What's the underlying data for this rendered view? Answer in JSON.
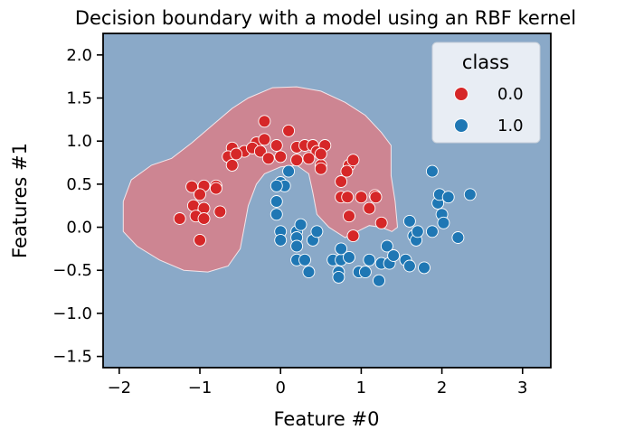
{
  "chart_data": {
    "type": "scatter",
    "title": "Decision boundary with a model using an RBF kernel",
    "xlabel": "Feature #0",
    "ylabel": "Features #1",
    "xlim": [
      -2.2,
      3.35
    ],
    "ylim": [
      -1.63,
      2.25
    ],
    "xticks": [
      -2,
      -1,
      0,
      1,
      2,
      3
    ],
    "xtick_labels": [
      "−2",
      "−1",
      "0",
      "1",
      "2",
      "3"
    ],
    "yticks": [
      -1.5,
      -1.0,
      -0.5,
      0.0,
      0.5,
      1.0,
      1.5,
      2.0
    ],
    "ytick_labels": [
      "−1.5",
      "−1.0",
      "−0.5",
      "0.0",
      "0.5",
      "1.0",
      "1.5",
      "2.0"
    ],
    "grid": false,
    "legend": {
      "title": "class",
      "placement": "top-right"
    },
    "background_region": {
      "class": "1.0",
      "color": "#8aa9c8"
    },
    "decision_region": {
      "class": "0.0",
      "color": "#cd8592",
      "boundary": [
        [
          -1.95,
          -0.05
        ],
        [
          -1.95,
          0.3
        ],
        [
          -1.85,
          0.55
        ],
        [
          -1.6,
          0.72
        ],
        [
          -1.35,
          0.8
        ],
        [
          -1.1,
          0.98
        ],
        [
          -0.85,
          1.18
        ],
        [
          -0.6,
          1.38
        ],
        [
          -0.4,
          1.5
        ],
        [
          -0.1,
          1.62
        ],
        [
          0.2,
          1.63
        ],
        [
          0.5,
          1.58
        ],
        [
          0.8,
          1.45
        ],
        [
          1.05,
          1.3
        ],
        [
          1.25,
          1.1
        ],
        [
          1.37,
          0.95
        ],
        [
          1.37,
          0.6
        ],
        [
          1.42,
          0.3
        ],
        [
          1.45,
          0.0
        ],
        [
          1.38,
          -0.05
        ],
        [
          1.25,
          0.0
        ],
        [
          1.1,
          0.02
        ],
        [
          0.95,
          -0.05
        ],
        [
          0.8,
          -0.12
        ],
        [
          0.6,
          0.0
        ],
        [
          0.45,
          0.15
        ],
        [
          0.4,
          0.4
        ],
        [
          0.35,
          0.62
        ],
        [
          0.2,
          0.72
        ],
        [
          0.0,
          0.7
        ],
        [
          -0.2,
          0.62
        ],
        [
          -0.3,
          0.5
        ],
        [
          -0.4,
          0.25
        ],
        [
          -0.45,
          0.0
        ],
        [
          -0.5,
          -0.25
        ],
        [
          -0.65,
          -0.45
        ],
        [
          -0.9,
          -0.52
        ],
        [
          -1.2,
          -0.5
        ],
        [
          -1.5,
          -0.38
        ],
        [
          -1.78,
          -0.22
        ]
      ]
    },
    "series": [
      {
        "name": "0.0",
        "color": "#d62728",
        "points": [
          [
            -0.2,
            1.23
          ],
          [
            0.1,
            1.12
          ],
          [
            -0.3,
            0.98
          ],
          [
            -0.2,
            1.02
          ],
          [
            -0.05,
            0.95
          ],
          [
            0.2,
            0.93
          ],
          [
            0.3,
            0.95
          ],
          [
            0.4,
            0.95
          ],
          [
            0.45,
            0.88
          ],
          [
            0.55,
            0.95
          ],
          [
            -0.6,
            0.92
          ],
          [
            -0.45,
            0.88
          ],
          [
            -0.35,
            0.92
          ],
          [
            -0.25,
            0.88
          ],
          [
            -0.15,
            0.8
          ],
          [
            0.0,
            0.82
          ],
          [
            0.2,
            0.78
          ],
          [
            0.35,
            0.8
          ],
          [
            0.5,
            0.72
          ],
          [
            0.5,
            0.85
          ],
          [
            -0.65,
            0.82
          ],
          [
            -0.6,
            0.72
          ],
          [
            -0.55,
            0.85
          ],
          [
            0.5,
            0.68
          ],
          [
            0.85,
            0.72
          ],
          [
            0.9,
            0.78
          ],
          [
            0.75,
            0.53
          ],
          [
            0.82,
            0.65
          ],
          [
            -1.1,
            0.47
          ],
          [
            -0.95,
            0.48
          ],
          [
            -0.8,
            0.48
          ],
          [
            -0.8,
            0.45
          ],
          [
            -1.0,
            0.38
          ],
          [
            -1.08,
            0.25
          ],
          [
            -0.95,
            0.22
          ],
          [
            -0.75,
            0.18
          ],
          [
            -1.25,
            0.1
          ],
          [
            -1.05,
            0.13
          ],
          [
            -0.95,
            0.1
          ],
          [
            -1.0,
            -0.15
          ],
          [
            0.75,
            0.35
          ],
          [
            0.83,
            0.35
          ],
          [
            1.0,
            0.35
          ],
          [
            1.17,
            0.37
          ],
          [
            1.18,
            0.35
          ],
          [
            1.1,
            0.22
          ],
          [
            0.85,
            0.13
          ],
          [
            1.25,
            0.05
          ],
          [
            0.9,
            -0.1
          ]
        ]
      },
      {
        "name": "1.0",
        "color": "#1f77b4",
        "points": [
          [
            0.1,
            0.65
          ],
          [
            0.0,
            0.52
          ],
          [
            0.05,
            0.48
          ],
          [
            -0.05,
            0.48
          ],
          [
            -0.05,
            0.3
          ],
          [
            -0.05,
            0.15
          ],
          [
            0.0,
            -0.05
          ],
          [
            0.0,
            -0.15
          ],
          [
            0.2,
            -0.05
          ],
          [
            0.2,
            -0.12
          ],
          [
            0.25,
            0.03
          ],
          [
            0.2,
            -0.22
          ],
          [
            0.2,
            -0.38
          ],
          [
            0.3,
            -0.38
          ],
          [
            0.35,
            -0.52
          ],
          [
            0.4,
            -0.15
          ],
          [
            0.45,
            -0.05
          ],
          [
            0.65,
            -0.38
          ],
          [
            0.72,
            -0.52
          ],
          [
            0.72,
            -0.58
          ],
          [
            0.75,
            -0.38
          ],
          [
            0.75,
            -0.25
          ],
          [
            0.85,
            -0.35
          ],
          [
            0.97,
            -0.52
          ],
          [
            1.05,
            -0.52
          ],
          [
            1.1,
            -0.38
          ],
          [
            1.22,
            -0.62
          ],
          [
            1.25,
            -0.42
          ],
          [
            1.35,
            -0.42
          ],
          [
            1.32,
            -0.22
          ],
          [
            1.4,
            -0.33
          ],
          [
            1.55,
            -0.38
          ],
          [
            1.6,
            -0.45
          ],
          [
            1.6,
            0.07
          ],
          [
            1.65,
            -0.1
          ],
          [
            1.68,
            -0.15
          ],
          [
            1.7,
            -0.05
          ],
          [
            1.78,
            -0.47
          ],
          [
            1.88,
            -0.05
          ],
          [
            1.95,
            0.28
          ],
          [
            1.97,
            0.38
          ],
          [
            2.0,
            0.15
          ],
          [
            2.02,
            0.05
          ],
          [
            2.08,
            0.35
          ],
          [
            2.2,
            -0.12
          ],
          [
            2.35,
            0.38
          ],
          [
            1.88,
            0.65
          ]
        ]
      }
    ]
  }
}
